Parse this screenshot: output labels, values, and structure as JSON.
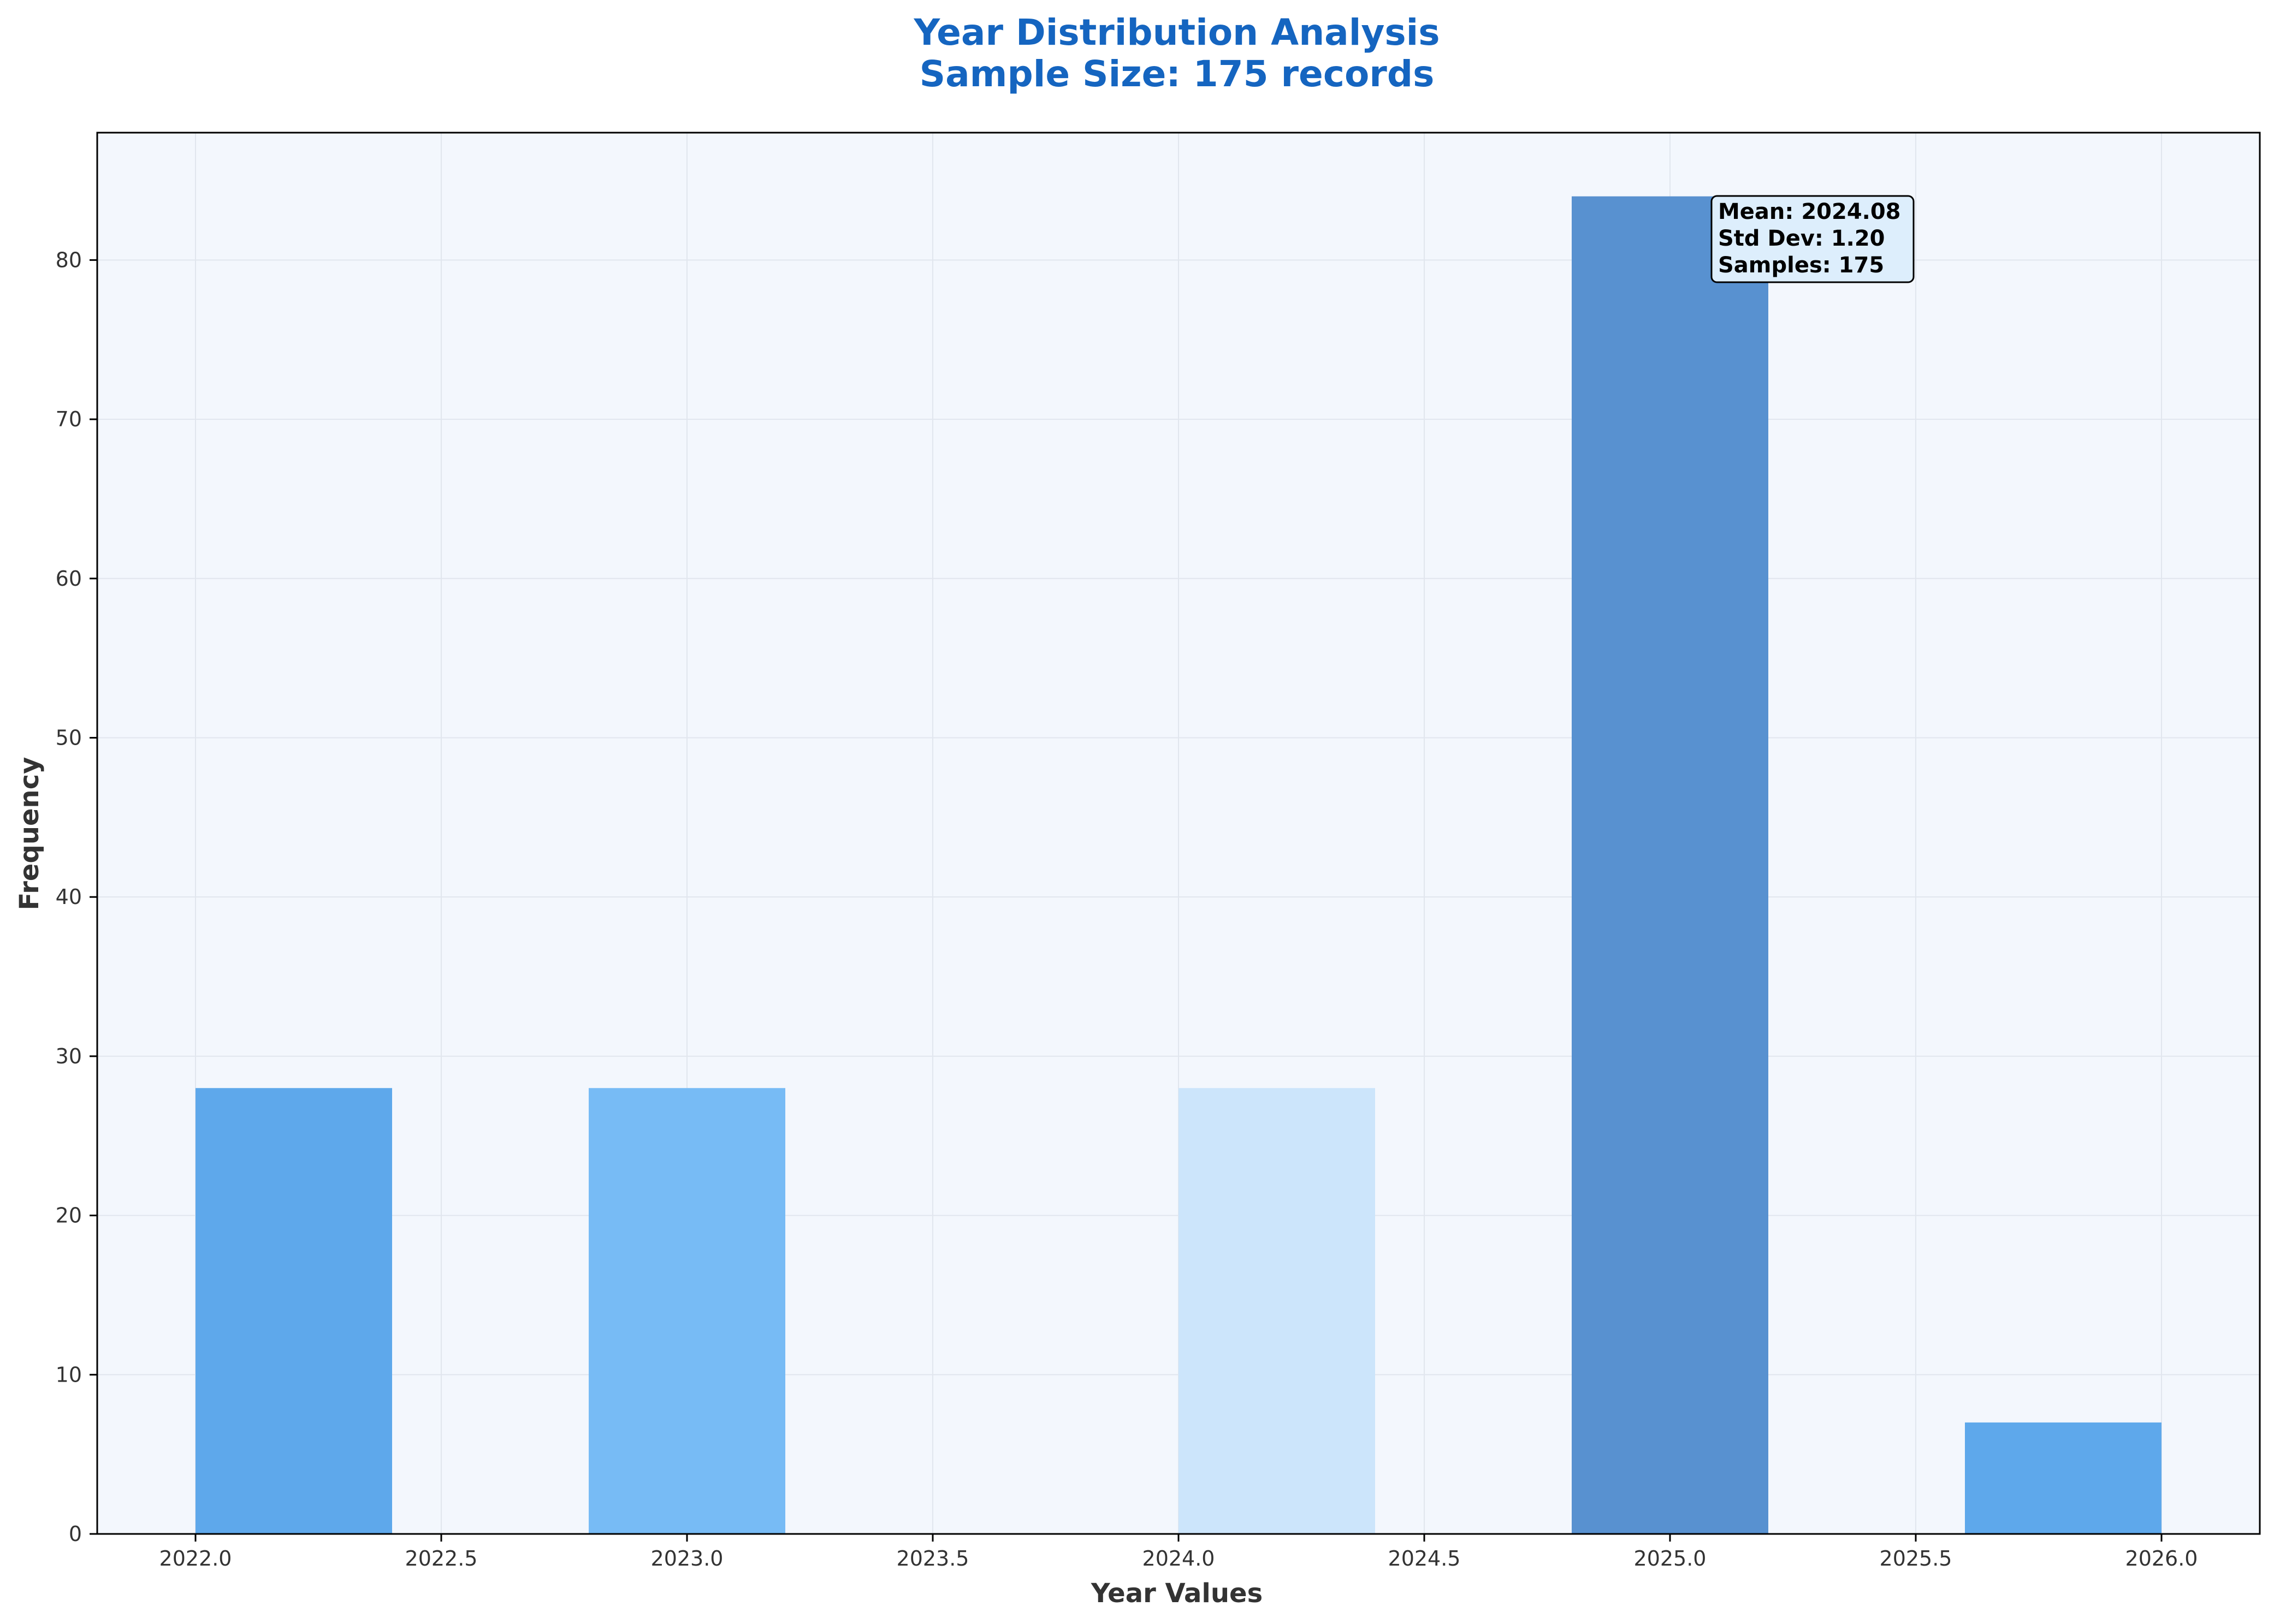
{
  "chart_data": {
    "type": "bar",
    "title": "Year Distribution Analysis",
    "subtitle": "Sample Size: 175 records",
    "xlabel": "Year Values",
    "ylabel": "Frequency",
    "xlim": [
      2021.8,
      2026.2
    ],
    "ylim": [
      0,
      88
    ],
    "x_ticks": [
      "2022.0",
      "2022.5",
      "2023.0",
      "2023.5",
      "2024.0",
      "2024.5",
      "2025.0",
      "2025.5",
      "2026.0"
    ],
    "y_ticks": [
      "0",
      "10",
      "20",
      "30",
      "40",
      "50",
      "60",
      "70",
      "80"
    ],
    "grid": true,
    "bins": [
      {
        "start": 2022.0,
        "end": 2022.4,
        "value": 28,
        "color": "#5ea8eb"
      },
      {
        "start": 2022.8,
        "end": 2023.2,
        "value": 28,
        "color": "#77bbf5"
      },
      {
        "start": 2023.2,
        "end": 2023.6,
        "value": 0,
        "color": "#77bbf5"
      },
      {
        "start": 2023.6,
        "end": 2024.0,
        "value": 0,
        "color": "#77bbf5"
      },
      {
        "start": 2024.0,
        "end": 2024.4,
        "value": 28,
        "color": "#cce5fb"
      },
      {
        "start": 2024.8,
        "end": 2025.2,
        "value": 84,
        "color": "#5891d0"
      },
      {
        "start": 2025.6,
        "end": 2026.0,
        "value": 7,
        "color": "#5ea8eb"
      }
    ],
    "annotation": {
      "lines": [
        "Mean: 2024.08",
        "Std Dev: 1.20",
        "Samples: 175"
      ]
    },
    "colors": {
      "title": "#1565c0",
      "plot_background": "#f3f7fd",
      "grid": "#e1e6ee"
    }
  }
}
